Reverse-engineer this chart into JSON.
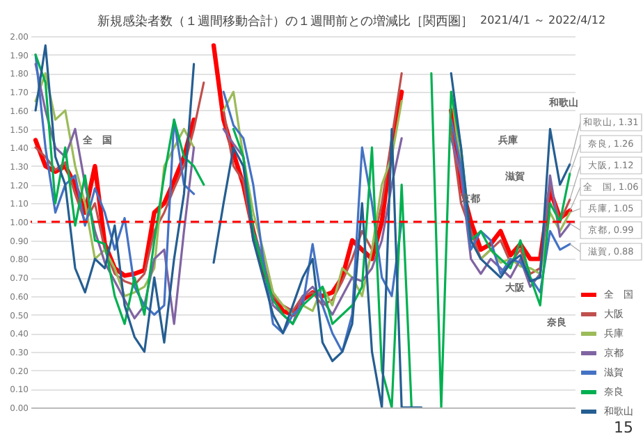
{
  "chart_data": {
    "type": "line",
    "title": "新規感染者数（１週間移動合計）の１週間前との増減比［関西圏］",
    "subtitle": "2021/4/1 ～ 2022/4/12",
    "categories": [
      null,
      null,
      null,
      null,
      null,
      null,
      null,
      null,
      null,
      null,
      null,
      null,
      null,
      null,
      null,
      null,
      null,
      null,
      null,
      null,
      null,
      null,
      null,
      null,
      null,
      null,
      null,
      null,
      null,
      null,
      null,
      null,
      null,
      null,
      null,
      null,
      null,
      null,
      null,
      null,
      null,
      null,
      null,
      null,
      null,
      null,
      null,
      null,
      null,
      null,
      null,
      null,
      null,
      null,
      null
    ],
    "series": [
      {
        "name": "全　国",
        "color": "#ff0000",
        "values": [
          1.44,
          1.3,
          1.27,
          1.3,
          1.2,
          1.05,
          1.3,
          0.88,
          0.75,
          0.71,
          0.72,
          0.74,
          1.05,
          1.1,
          1.22,
          1.35,
          1.55,
          null,
          1.95,
          1.55,
          1.37,
          1.2,
          0.95,
          0.75,
          0.6,
          0.52,
          0.5,
          0.58,
          0.62,
          0.6,
          0.62,
          0.7,
          0.9,
          0.85,
          0.8,
          1.0,
          1.4,
          1.7,
          null,
          null,
          null,
          null,
          1.6,
          1.2,
          1.0,
          0.85,
          0.88,
          0.95,
          0.82,
          0.88,
          0.8,
          0.8,
          1.17,
          1.02,
          1.06
        ],
        "value_labels": [
          null,
          null,
          null,
          null,
          null,
          null,
          null,
          null,
          null,
          null,
          null,
          null,
          null,
          null,
          null,
          null,
          null,
          null,
          null,
          null,
          null,
          null,
          null,
          null,
          null,
          null,
          null,
          null,
          null,
          null,
          null,
          null,
          null,
          null,
          null,
          null,
          null,
          null,
          null,
          null,
          null,
          null,
          null,
          null,
          null,
          null,
          null,
          null,
          null,
          null,
          null,
          null,
          null,
          null,
          "全　国, 1.06"
        ]
      },
      {
        "name": "大阪",
        "color": "#c0504d",
        "values": [
          1.4,
          1.35,
          1.28,
          1.32,
          1.15,
          1.0,
          1.1,
          0.85,
          0.72,
          0.68,
          0.66,
          0.72,
          0.95,
          1.05,
          1.18,
          1.3,
          1.5,
          1.75,
          null,
          1.6,
          1.3,
          1.22,
          0.9,
          0.78,
          0.6,
          0.55,
          0.52,
          0.6,
          0.62,
          0.55,
          0.58,
          0.68,
          0.8,
          0.95,
          0.85,
          1.1,
          1.45,
          1.8,
          null,
          null,
          null,
          null,
          1.5,
          1.1,
          0.95,
          0.8,
          0.85,
          0.9,
          0.78,
          0.85,
          0.72,
          0.75,
          1.2,
          1.0,
          1.12
        ],
        "value_labels": [
          null,
          null,
          null,
          null,
          null,
          null,
          null,
          null,
          null,
          null,
          null,
          null,
          null,
          null,
          null,
          null,
          null,
          null,
          null,
          null,
          null,
          null,
          null,
          null,
          null,
          null,
          null,
          null,
          null,
          null,
          null,
          null,
          null,
          null,
          null,
          null,
          null,
          null,
          null,
          null,
          null,
          null,
          null,
          null,
          null,
          null,
          null,
          null,
          null,
          null,
          null,
          null,
          null,
          null,
          "大阪, 1.12"
        ]
      },
      {
        "name": "兵庫",
        "color": "#9bbb59",
        "values": [
          1.65,
          1.8,
          1.55,
          1.6,
          1.3,
          1.1,
          0.8,
          0.85,
          0.75,
          0.6,
          0.62,
          0.65,
          0.75,
          1.3,
          1.4,
          1.5,
          1.4,
          null,
          null,
          1.6,
          1.7,
          1.35,
          1.05,
          0.85,
          0.62,
          0.55,
          0.5,
          0.55,
          0.52,
          0.65,
          0.55,
          0.75,
          0.7,
          0.6,
          0.85,
          1.2,
          1.35,
          1.65,
          null,
          null,
          null,
          null,
          1.7,
          1.3,
          0.9,
          0.8,
          0.85,
          0.78,
          0.8,
          0.76,
          0.75,
          0.72,
          1.05,
          0.95,
          1.05
        ],
        "value_labels": [
          null,
          null,
          null,
          null,
          null,
          null,
          null,
          null,
          null,
          null,
          null,
          null,
          null,
          null,
          null,
          null,
          null,
          null,
          null,
          null,
          null,
          null,
          null,
          null,
          null,
          null,
          null,
          null,
          null,
          null,
          null,
          null,
          null,
          null,
          null,
          null,
          null,
          null,
          null,
          null,
          null,
          null,
          null,
          null,
          null,
          null,
          null,
          null,
          null,
          null,
          null,
          null,
          null,
          null,
          "兵庫, 1.05"
        ]
      },
      {
        "name": "京都",
        "color": "#8064a2",
        "values": [
          1.85,
          1.6,
          1.4,
          1.35,
          1.5,
          1.2,
          0.95,
          0.78,
          0.68,
          0.58,
          0.48,
          0.55,
          0.8,
          0.85,
          0.45,
          0.95,
          1.4,
          null,
          null,
          1.5,
          1.42,
          1.35,
          0.95,
          0.8,
          0.55,
          0.5,
          0.45,
          0.6,
          0.65,
          0.58,
          0.5,
          0.6,
          0.7,
          0.68,
          0.75,
          0.9,
          1.2,
          1.45,
          null,
          null,
          null,
          null,
          1.45,
          1.25,
          0.8,
          0.72,
          0.8,
          0.75,
          0.7,
          0.8,
          0.65,
          0.72,
          1.25,
          0.92,
          0.99
        ],
        "value_labels": [
          null,
          null,
          null,
          null,
          null,
          null,
          null,
          null,
          null,
          null,
          null,
          null,
          null,
          null,
          null,
          null,
          null,
          null,
          null,
          null,
          null,
          null,
          null,
          null,
          null,
          null,
          null,
          null,
          null,
          null,
          null,
          null,
          null,
          null,
          null,
          null,
          null,
          null,
          null,
          null,
          null,
          null,
          null,
          null,
          null,
          null,
          null,
          null,
          null,
          null,
          null,
          null,
          null,
          null,
          "京都, 0.99"
        ]
      },
      {
        "name": "滋賀",
        "color": "#4472c4",
        "values": [
          1.9,
          1.4,
          1.05,
          1.2,
          1.25,
          0.98,
          1.18,
          1.05,
          0.85,
          1.02,
          0.65,
          0.55,
          0.5,
          0.55,
          1.55,
          1.2,
          1.15,
          null,
          null,
          1.7,
          1.52,
          1.45,
          1.2,
          0.8,
          0.45,
          0.4,
          0.5,
          0.55,
          0.88,
          0.55,
          0.4,
          0.3,
          0.5,
          1.4,
          1.1,
          0.7,
          0.6,
          1.0,
          null,
          null,
          null,
          null,
          1.55,
          1.3,
          0.85,
          0.95,
          0.9,
          0.72,
          0.8,
          0.78,
          0.7,
          0.62,
          0.95,
          0.85,
          0.88
        ],
        "value_labels": [
          null,
          null,
          null,
          null,
          null,
          null,
          null,
          null,
          null,
          null,
          null,
          null,
          null,
          null,
          null,
          null,
          null,
          null,
          null,
          null,
          null,
          null,
          null,
          null,
          null,
          null,
          null,
          null,
          null,
          null,
          null,
          null,
          null,
          null,
          null,
          null,
          null,
          null,
          null,
          null,
          null,
          null,
          null,
          null,
          null,
          null,
          null,
          null,
          null,
          null,
          null,
          null,
          null,
          null,
          "滋賀, 0.88"
        ]
      },
      {
        "name": "奈良",
        "color": "#00b050",
        "values": [
          1.9,
          1.75,
          1.1,
          1.4,
          0.98,
          1.25,
          0.9,
          0.88,
          0.6,
          0.45,
          0.7,
          0.5,
          0.9,
          1.25,
          1.55,
          1.35,
          1.3,
          1.2,
          null,
          null,
          1.5,
          1.35,
          0.95,
          0.75,
          0.58,
          0.5,
          0.45,
          0.55,
          0.6,
          0.65,
          0.45,
          0.5,
          0.55,
          0.65,
          1.4,
          0.2,
          0.0,
          1.2,
          0.0,
          null,
          1.8,
          0.0,
          1.7,
          1.4,
          0.9,
          0.95,
          0.85,
          0.8,
          0.75,
          0.9,
          0.7,
          0.55,
          1.1,
          1.0,
          1.26
        ],
        "value_labels": [
          null,
          null,
          null,
          null,
          null,
          null,
          null,
          null,
          null,
          null,
          null,
          null,
          null,
          null,
          null,
          null,
          null,
          null,
          null,
          null,
          null,
          null,
          null,
          null,
          null,
          null,
          null,
          null,
          null,
          null,
          null,
          null,
          null,
          null,
          null,
          null,
          null,
          null,
          null,
          null,
          null,
          null,
          null,
          null,
          null,
          null,
          null,
          null,
          null,
          null,
          null,
          null,
          null,
          null,
          "奈良, 1.26"
        ]
      },
      {
        "name": "和歌山",
        "color": "#255e91",
        "values": [
          1.6,
          1.95,
          1.35,
          1.2,
          0.75,
          0.62,
          0.8,
          0.75,
          0.98,
          0.55,
          0.38,
          0.3,
          0.7,
          0.35,
          0.8,
          1.15,
          1.85,
          null,
          0.78,
          1.1,
          1.4,
          1.3,
          0.9,
          0.7,
          0.5,
          0.4,
          0.55,
          0.7,
          0.8,
          0.35,
          0.25,
          0.3,
          0.45,
          1.1,
          0.3,
          0.0,
          1.5,
          0.0,
          0.0,
          0.0,
          null,
          null,
          1.8,
          1.4,
          0.9,
          0.8,
          0.75,
          0.7,
          0.78,
          0.82,
          0.68,
          0.7,
          1.5,
          1.2,
          1.31
        ],
        "value_labels": [
          null,
          null,
          null,
          null,
          null,
          null,
          null,
          null,
          null,
          null,
          null,
          null,
          null,
          null,
          null,
          null,
          null,
          null,
          null,
          null,
          null,
          null,
          null,
          null,
          null,
          null,
          null,
          null,
          null,
          null,
          null,
          null,
          null,
          null,
          null,
          null,
          null,
          null,
          null,
          null,
          null,
          null,
          null,
          null,
          null,
          null,
          null,
          null,
          null,
          null,
          null,
          null,
          null,
          null,
          "和歌山, 1.31"
        ]
      }
    ],
    "ylim": [
      0,
      2
    ],
    "yticks": [
      {
        "value": 0,
        "label": "0.00"
      },
      {
        "value": 0.1,
        "label": "0.10"
      },
      {
        "value": 0.2,
        "label": "0.20"
      },
      {
        "value": 0.3,
        "label": "0.30"
      },
      {
        "value": 0.4,
        "label": "0.40"
      },
      {
        "value": 0.5,
        "label": "0.50"
      },
      {
        "value": 0.6,
        "label": "0.60"
      },
      {
        "value": 0.7,
        "label": "0.70"
      },
      {
        "value": 0.8,
        "label": "0.80"
      },
      {
        "value": 0.9,
        "label": "0.90"
      },
      {
        "value": 1,
        "label": "1.00"
      },
      {
        "value": 1.1,
        "label": "1.10"
      },
      {
        "value": 1.2,
        "label": "1.20"
      },
      {
        "value": 1.3,
        "label": "1.30"
      },
      {
        "value": 1.4,
        "label": "1.40"
      },
      {
        "value": 1.5,
        "label": "1.50"
      },
      {
        "value": 1.6,
        "label": "1.60"
      },
      {
        "value": 1.7,
        "label": "1.70"
      },
      {
        "value": 1.8,
        "label": "1.80"
      },
      {
        "value": 1.9,
        "label": "1.90"
      },
      {
        "value": 2,
        "label": "2.00"
      }
    ],
    "grid": "y",
    "legend": "bottom right",
    "ref_lines": [
      {
        "axis": "y",
        "value": 1,
        "color": "#ff0000",
        "line_style": "dashed"
      }
    ],
    "annotations": [
      "全　国",
      "和歌山",
      "兵庫",
      "滋賀",
      "京都",
      "大阪",
      "奈良",
      "15"
    ]
  }
}
